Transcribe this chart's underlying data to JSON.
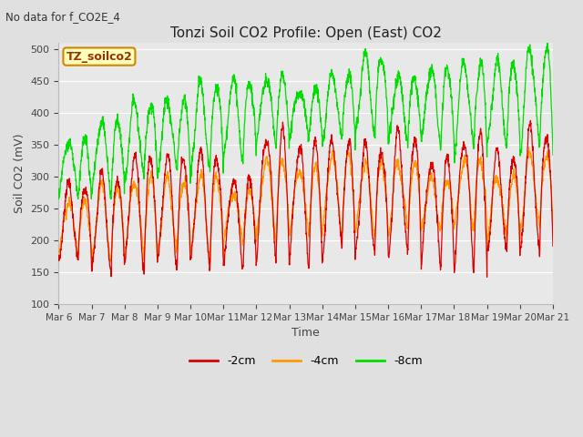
{
  "title": "Tonzi Soil CO2 Profile: Open (East) CO2",
  "subtitle": "No data for f_CO2E_4",
  "ylabel": "Soil CO2 (mV)",
  "xlabel": "Time",
  "box_label": "TZ_soilco2",
  "ylim": [
    100,
    510
  ],
  "yticks": [
    100,
    150,
    200,
    250,
    300,
    350,
    400,
    450,
    500
  ],
  "x_labels": [
    "Mar 6",
    "Mar 7",
    "Mar 8",
    "Mar 9",
    "Mar 10",
    "Mar 11",
    "Mar 12",
    "Mar 13",
    "Mar 14",
    "Mar 15",
    "Mar 16",
    "Mar 17",
    "Mar 18",
    "Mar 19",
    "Mar 20",
    "Mar 21"
  ],
  "color_2cm": "#dd0000",
  "color_4cm": "#ff9900",
  "color_8cm": "#00dd00",
  "legend_labels": [
    "-2cm",
    "-4cm",
    "-8cm"
  ],
  "fig_bg": "#e0e0e0",
  "plot_bg": "#e8e8e8",
  "n_days": 15,
  "pts_per_day": 144
}
